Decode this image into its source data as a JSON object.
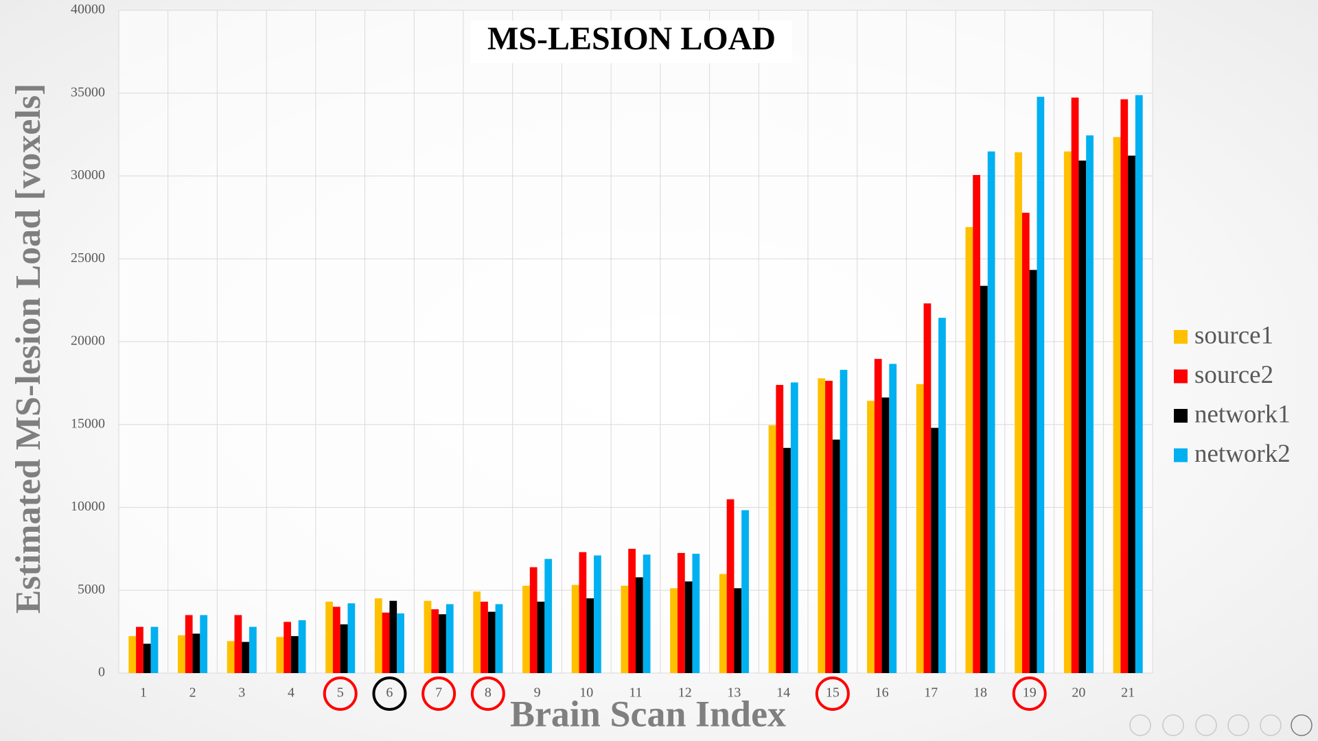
{
  "chart_data": {
    "type": "bar",
    "title": "MS-LESION LOAD",
    "x_label": "Brain Scan Index",
    "y_label": "Estimated MS-lesion Load [voxels]",
    "categories": [
      "1",
      "2",
      "3",
      "4",
      "5",
      "6",
      "7",
      "8",
      "9",
      "10",
      "11",
      "12",
      "13",
      "14",
      "15",
      "16",
      "17",
      "18",
      "19",
      "20",
      "21"
    ],
    "series": [
      {
        "name": "source1",
        "color": "#ffc000",
        "values": [
          2230,
          2280,
          1930,
          2180,
          4310,
          4510,
          4360,
          4920,
          5270,
          5320,
          5270,
          5120,
          5980,
          14960,
          17790,
          16430,
          17440,
          26920,
          31430,
          31480,
          32350
        ]
      },
      {
        "name": "source2",
        "color": "#ff0000",
        "values": [
          2790,
          3500,
          3500,
          3090,
          4000,
          3650,
          3850,
          4310,
          6390,
          7300,
          7500,
          7250,
          10490,
          17390,
          17640,
          18960,
          22310,
          30060,
          27780,
          34730,
          34630
        ]
      },
      {
        "name": "network1",
        "color": "#000000",
        "values": [
          1770,
          2380,
          1880,
          2230,
          2940,
          4360,
          3550,
          3700,
          4310,
          4510,
          5780,
          5530,
          5120,
          13590,
          14090,
          16630,
          14800,
          23370,
          24330,
          30930,
          31230
        ]
      },
      {
        "name": "network2",
        "color": "#00b0f0",
        "values": [
          2790,
          3500,
          2790,
          3190,
          4210,
          3600,
          4160,
          4160,
          6890,
          7100,
          7150,
          7200,
          9830,
          17540,
          18300,
          18660,
          21440,
          31480,
          34780,
          32450,
          34880
        ]
      }
    ],
    "ylim": [
      0,
      40000
    ],
    "yticks": [
      0,
      5000,
      10000,
      15000,
      20000,
      25000,
      30000,
      35000,
      40000
    ],
    "grid": true,
    "legend": "right",
    "circled_categories": [
      {
        "index": 4,
        "color": "#ff0000"
      },
      {
        "index": 5,
        "color": "#000000"
      },
      {
        "index": 6,
        "color": "#ff0000"
      },
      {
        "index": 7,
        "color": "#ff0000"
      },
      {
        "index": 14,
        "color": "#ff0000"
      },
      {
        "index": 18,
        "color": "#ff0000"
      }
    ]
  }
}
